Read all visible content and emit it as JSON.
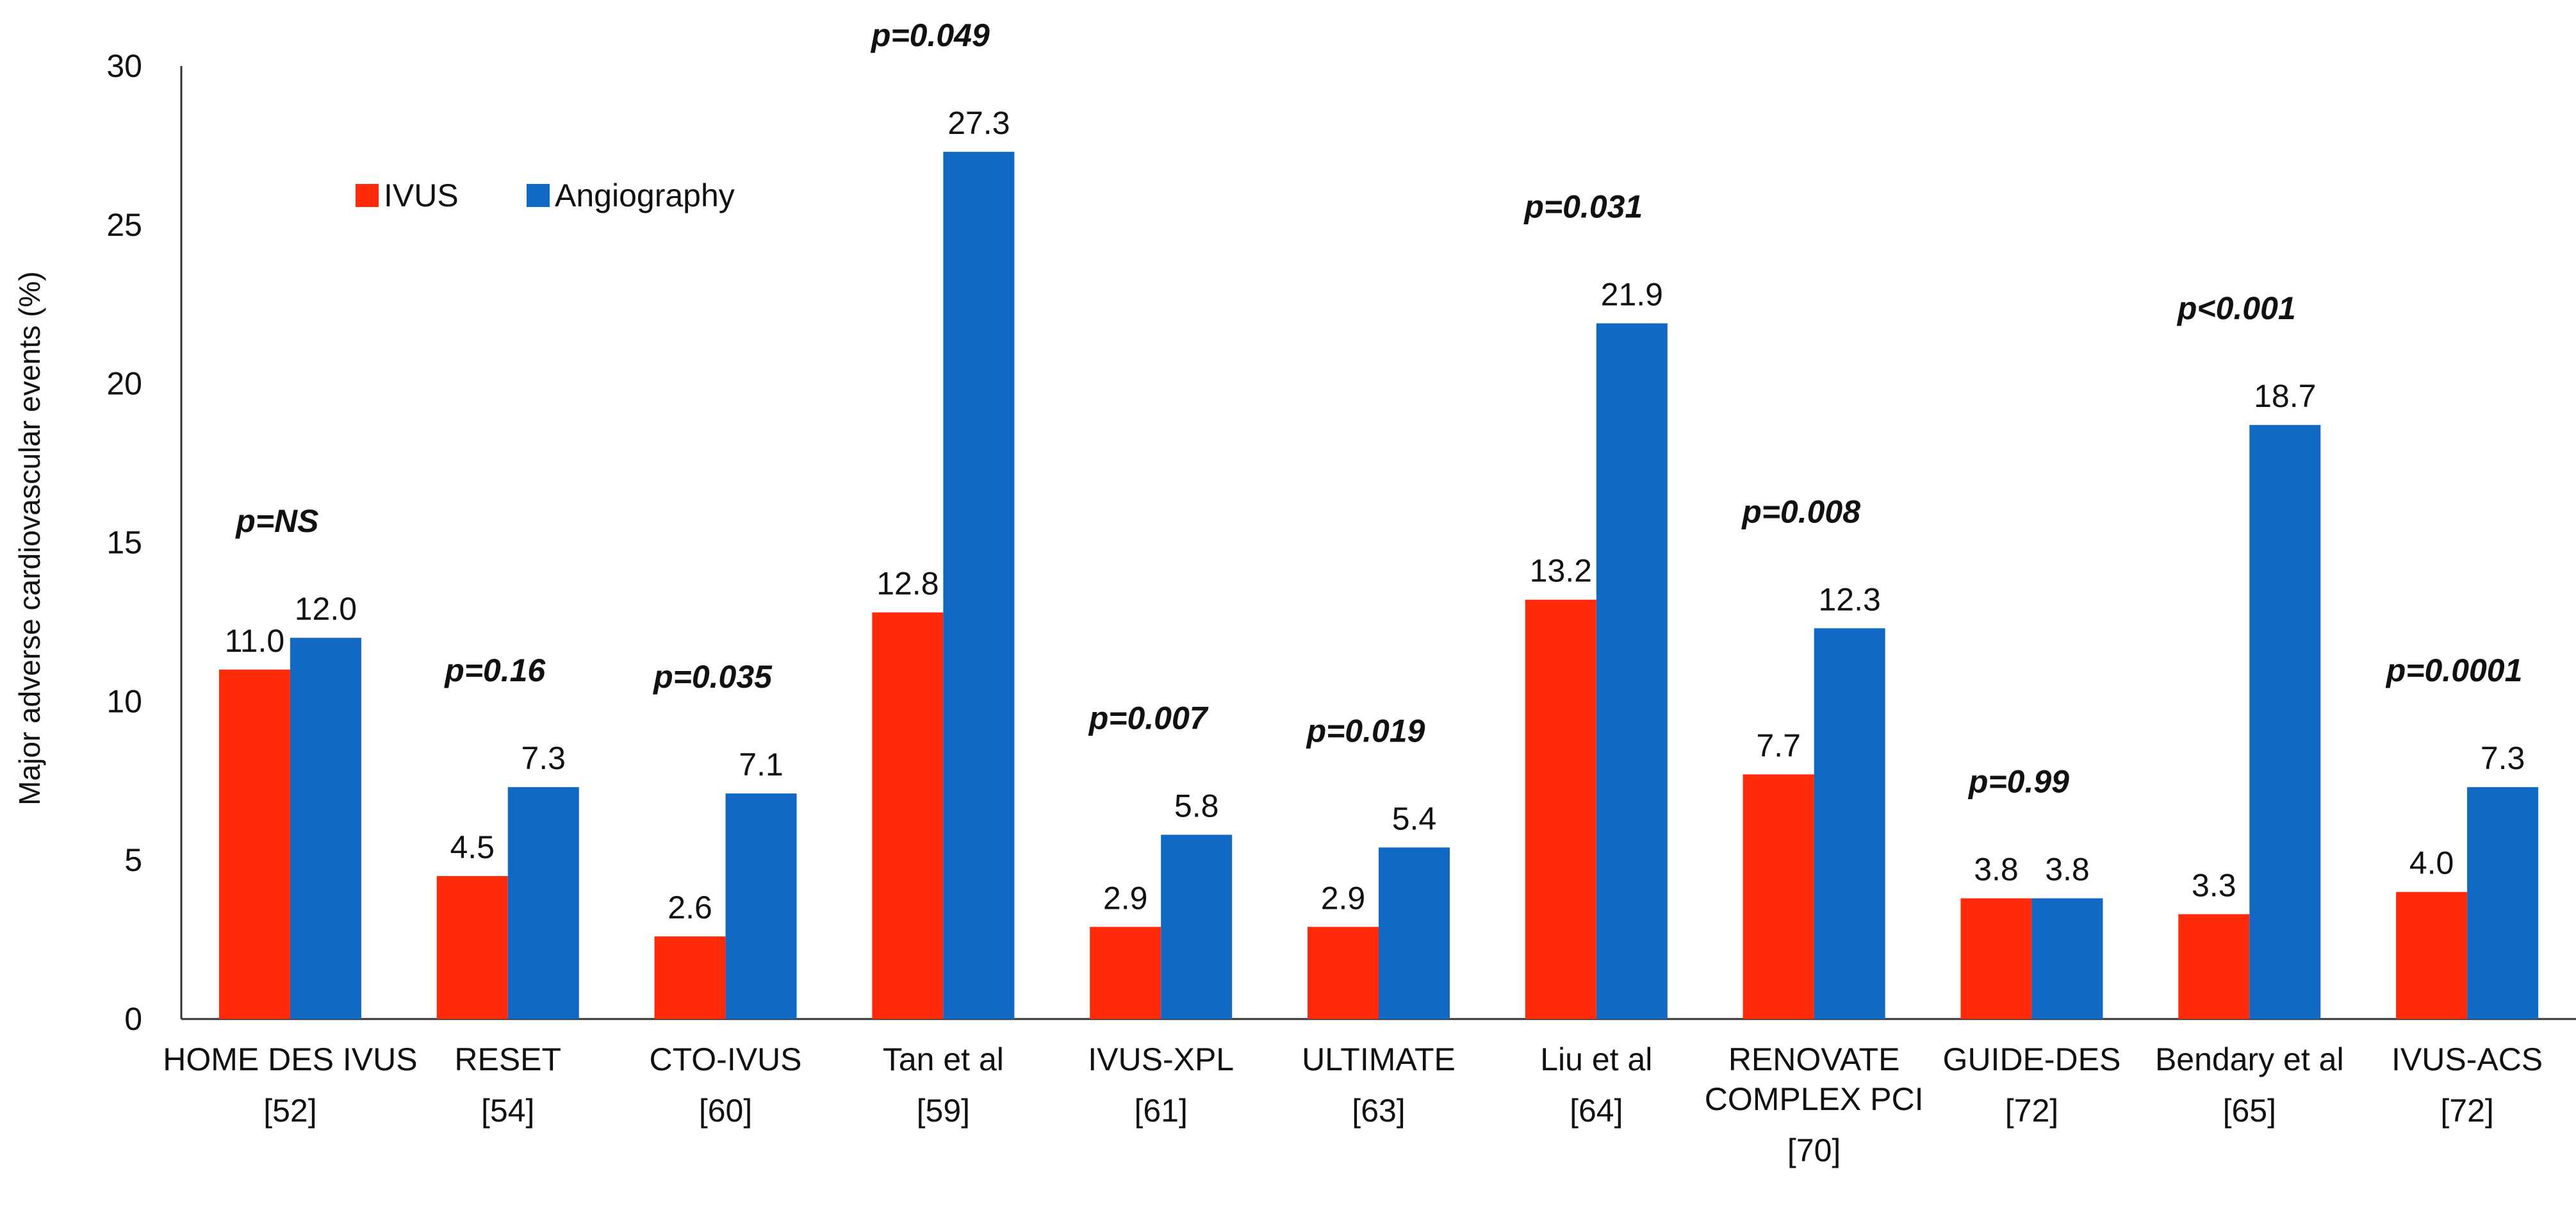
{
  "chart_data": {
    "type": "bar",
    "title": "",
    "xlabel": "",
    "ylabel": "Major adverse cardiovascular events (%)",
    "ylim": [
      0,
      30
    ],
    "yticks": [
      0,
      5,
      10,
      15,
      20,
      25,
      30
    ],
    "grid": false,
    "legend_position": "top-left",
    "categories": [
      {
        "name": "HOME DES IVUS",
        "ref": "[52]"
      },
      {
        "name": "RESET",
        "ref": "[54]"
      },
      {
        "name": "CTO-IVUS",
        "ref": "[60]"
      },
      {
        "name": "Tan et al",
        "ref": "[59]"
      },
      {
        "name": "IVUS-XPL",
        "ref": "[61]"
      },
      {
        "name": "ULTIMATE",
        "ref": "[63]"
      },
      {
        "name": "Liu et al",
        "ref": "[64]"
      },
      {
        "name": "RENOVATE COMPLEX PCI",
        "ref": "[70]"
      },
      {
        "name": "GUIDE-DES",
        "ref": "[72]"
      },
      {
        "name": "Bendary et al",
        "ref": "[65]"
      },
      {
        "name": "IVUS-ACS",
        "ref": "[72]"
      }
    ],
    "series": [
      {
        "name": "IVUS",
        "color": "#ff2a0a",
        "values": [
          11.0,
          4.5,
          2.6,
          12.8,
          2.9,
          2.9,
          13.2,
          7.7,
          3.8,
          3.3,
          4.0
        ]
      },
      {
        "name": "Angiography",
        "color": "#1169c3",
        "values": [
          12.0,
          7.3,
          7.1,
          27.3,
          5.8,
          5.4,
          21.9,
          12.3,
          3.8,
          18.7,
          7.3
        ]
      }
    ],
    "p_values": [
      "p=NS",
      "p=0.16",
      "p=0.035",
      "p=0.049",
      "p=0.007",
      "p=0.019",
      "p=0.031",
      "p=0.008",
      "p=0.99",
      "p<0.001",
      "p=0.0001"
    ]
  }
}
